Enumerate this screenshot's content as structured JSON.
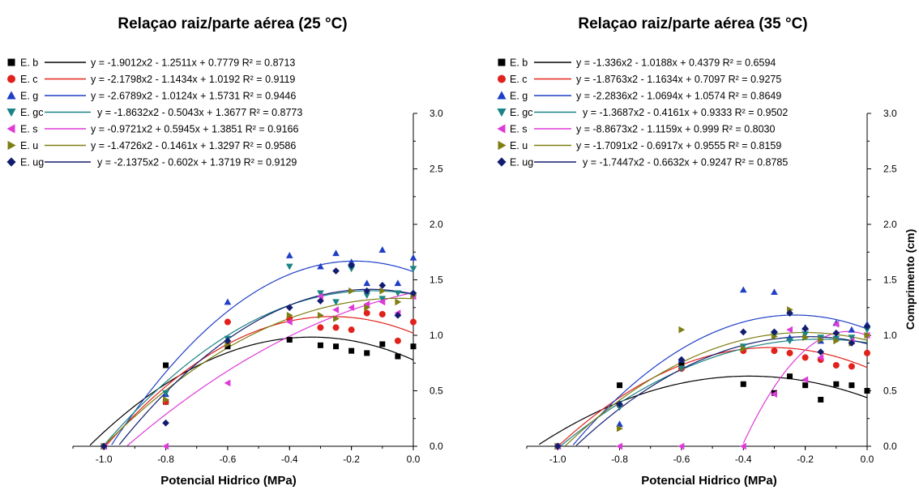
{
  "colors": {
    "E. b": "#000000",
    "E. c": "#e1221c",
    "E. g": "#1f3fc7",
    "E. gc": "#1b8383",
    "E. s": "#df3ad8",
    "E. u": "#7e7e12",
    "E. ug": "#121d6f"
  },
  "markers": {
    "E. b": "square",
    "E. c": "circle",
    "E. g": "triangle-up",
    "E. gc": "triangle-down",
    "E. s": "triangle-left",
    "E. u": "triangle-right",
    "E. ug": "diamond"
  },
  "chart_data": [
    {
      "type": "scatter",
      "title": "Relaçao raiz/parte aérea (25 °C)",
      "xlabel": "Potencial Hidrico (MPa)",
      "ylabel": "",
      "xlim": [
        -1.1,
        0.0
      ],
      "ylim": [
        0.0,
        3.0
      ],
      "xticks": [
        "-1.0",
        "-0.8",
        "-0.6",
        "-0.4",
        "-0.2",
        "0.0"
      ],
      "xtick_values": [
        -1.0,
        -0.8,
        -0.6,
        -0.4,
        -0.2,
        0.0
      ],
      "yticks": [
        "0.0",
        "0.5",
        "1.0",
        "1.5",
        "2.0",
        "2.5",
        "3.0"
      ],
      "ytick_values": [
        0.0,
        0.5,
        1.0,
        1.5,
        2.0,
        2.5,
        3.0
      ],
      "legend_position": "top-left",
      "grid": false,
      "series": [
        {
          "name": "E. b",
          "equation": "y = -1.9012x2 - 1.2511x + 0.7779 R² = 0.8713",
          "coef": [
            -1.9012,
            -1.2511,
            0.7779
          ],
          "x": [
            -1.0,
            -0.8,
            -0.8,
            -0.6,
            -0.4,
            -0.3,
            -0.25,
            -0.2,
            -0.15,
            -0.1,
            -0.05,
            0.0
          ],
          "y": [
            0.0,
            0.73,
            0.4,
            0.9,
            0.96,
            0.91,
            0.9,
            0.86,
            0.84,
            0.92,
            0.81,
            0.9
          ]
        },
        {
          "name": "E. c",
          "equation": "y = -2.1798x2 - 1.1434x + 1.0192 R² = 0.9119",
          "coef": [
            -2.1798,
            -1.1434,
            1.0192
          ],
          "x": [
            -1.0,
            -0.8,
            -0.6,
            -0.4,
            -0.3,
            -0.25,
            -0.2,
            -0.15,
            -0.1,
            -0.05,
            0.0
          ],
          "y": [
            0.0,
            0.4,
            1.12,
            1.15,
            1.07,
            1.07,
            1.05,
            1.2,
            1.19,
            0.95,
            1.12
          ]
        },
        {
          "name": "E. g",
          "equation": "y = -2.6789x2 - 1.0124x + 1.5731 R² = 0.9446",
          "coef": [
            -2.6789,
            -1.0124,
            1.5731
          ],
          "x": [
            -1.0,
            -0.8,
            -0.6,
            -0.4,
            -0.3,
            -0.25,
            -0.2,
            -0.15,
            -0.1,
            -0.05,
            0.0
          ],
          "y": [
            0.0,
            0.47,
            1.3,
            1.72,
            1.62,
            1.74,
            1.66,
            1.47,
            1.77,
            1.47,
            1.7
          ]
        },
        {
          "name": "E. gc",
          "equation": "y = -1.8632x2 - 0.5043x + 1.3677 R² = 0.8773",
          "coef": [
            -1.8632,
            -0.5043,
            1.3677
          ],
          "x": [
            -1.0,
            -0.8,
            -0.6,
            -0.4,
            -0.3,
            -0.25,
            -0.2,
            -0.15,
            -0.1,
            -0.05,
            0.0
          ],
          "y": [
            0.0,
            0.48,
            0.97,
            1.62,
            1.38,
            1.3,
            1.6,
            1.36,
            1.33,
            1.38,
            1.6
          ]
        },
        {
          "name": "E. s",
          "equation": "y = -0.9721x2 + 0.5945x + 1.3851 R² = 0.9166",
          "coef": [
            -0.9721,
            0.5945,
            1.3851
          ],
          "x": [
            -1.0,
            -0.8,
            -0.6,
            -0.4,
            -0.3,
            -0.25,
            -0.2,
            -0.15,
            -0.1,
            -0.05,
            0.0
          ],
          "y": [
            0.0,
            0.0,
            0.57,
            1.12,
            1.35,
            1.23,
            1.25,
            1.28,
            1.3,
            1.2,
            1.35
          ]
        },
        {
          "name": "E. u",
          "equation": "y = -1.4726x2 - 0.1461x + 1.3297 R² = 0.9586",
          "coef": [
            -1.4726,
            -0.1461,
            1.3297
          ],
          "x": [
            -1.0,
            -0.8,
            -0.6,
            -0.4,
            -0.3,
            -0.25,
            -0.2,
            -0.15,
            -0.1,
            -0.05,
            0.0
          ],
          "y": [
            0.0,
            0.42,
            0.92,
            1.18,
            1.18,
            1.15,
            1.4,
            1.25,
            1.4,
            1.3,
            1.36
          ]
        },
        {
          "name": "E. ug",
          "equation": "y = -2.1375x2 - 0.602x + 1.3719 R² = 0.9129",
          "coef": [
            -2.1375,
            -0.602,
            1.3719
          ],
          "x": [
            -1.0,
            -0.8,
            -0.6,
            -0.4,
            -0.3,
            -0.25,
            -0.2,
            -0.15,
            -0.1,
            -0.05,
            0.0
          ],
          "y": [
            0.0,
            0.21,
            0.95,
            1.25,
            1.31,
            1.58,
            1.63,
            1.4,
            1.45,
            1.18,
            1.38
          ]
        }
      ]
    },
    {
      "type": "scatter",
      "title": "Relaçao raiz/parte aérea (35 °C)",
      "xlabel": "Potencial Hidrico (MPa)",
      "ylabel": "Comprimento (cm)",
      "xlim": [
        -1.1,
        0.0
      ],
      "ylim": [
        0.0,
        3.0
      ],
      "xticks": [
        "-1.0",
        "-0.8",
        "-0.6",
        "-0.4",
        "-0.2",
        "0.0"
      ],
      "xtick_values": [
        -1.0,
        -0.8,
        -0.6,
        -0.4,
        -0.2,
        0.0
      ],
      "yticks": [
        "0.0",
        "0.5",
        "1.0",
        "1.5",
        "2.0",
        "2.5",
        "3.0"
      ],
      "ytick_values": [
        0.0,
        0.5,
        1.0,
        1.5,
        2.0,
        2.5,
        3.0
      ],
      "legend_position": "top-left",
      "grid": false,
      "series": [
        {
          "name": "E. b",
          "equation": "y = -1.336x2 - 1.0188x + 0.4379 R² = 0.6594",
          "coef": [
            -1.336,
            -1.0188,
            0.4379
          ],
          "x": [
            -1.0,
            -0.8,
            -0.6,
            -0.4,
            -0.3,
            -0.25,
            -0.2,
            -0.15,
            -0.1,
            -0.05,
            0.0
          ],
          "y": [
            0.0,
            0.55,
            0.75,
            0.56,
            0.48,
            0.63,
            0.55,
            0.42,
            0.56,
            0.55,
            0.5
          ]
        },
        {
          "name": "E. c",
          "equation": "y = -1.8763x2 - 1.1634x + 0.7097 R² = 0.9275",
          "coef": [
            -1.8763,
            -1.1634,
            0.7097
          ],
          "x": [
            -1.0,
            -0.8,
            -0.6,
            -0.4,
            -0.3,
            -0.25,
            -0.2,
            -0.15,
            -0.1,
            -0.05,
            0.0
          ],
          "y": [
            0.0,
            0.37,
            0.7,
            0.86,
            0.86,
            0.84,
            0.8,
            0.78,
            0.73,
            0.72,
            0.84
          ]
        },
        {
          "name": "E. g",
          "equation": "y = -2.2836x2 - 1.0694x + 1.0574 R² = 0.8649",
          "coef": [
            -2.2836,
            -1.0694,
            1.0574
          ],
          "x": [
            -1.0,
            -0.8,
            -0.6,
            -0.4,
            -0.3,
            -0.25,
            -0.2,
            -0.15,
            -0.1,
            -0.05,
            0.0
          ],
          "y": [
            0.0,
            0.2,
            0.78,
            1.41,
            1.39,
            0.98,
            1.07,
            0.95,
            1.11,
            1.05,
            1.1
          ]
        },
        {
          "name": "E. gc",
          "equation": "y = -1.3687x2 - 0.4161x + 0.9333 R² = 0.9502",
          "coef": [
            -1.3687,
            -0.4161,
            0.9333
          ],
          "x": [
            -1.0,
            -0.8,
            -0.6,
            -0.4,
            -0.3,
            -0.25,
            -0.2,
            -0.15,
            -0.1,
            -0.05,
            0.0
          ],
          "y": [
            0.0,
            0.35,
            0.7,
            0.9,
            1.0,
            0.95,
            1.01,
            0.98,
            0.97,
            0.98,
            1.05
          ]
        },
        {
          "name": "E. s",
          "equation": "y = -8.8673x2 - 1.1159x + 0.999 R² = 0.8030",
          "coef": [
            -8.8673,
            -1.1159,
            0.999
          ],
          "x": [
            -1.0,
            -0.8,
            -0.6,
            -0.4,
            -0.3,
            -0.25,
            -0.2,
            -0.15,
            -0.1,
            -0.05,
            0.0
          ],
          "y": [
            0.0,
            0.0,
            0.0,
            0.0,
            0.47,
            1.05,
            0.6,
            0.8,
            1.1,
            0.95,
            1.0
          ]
        },
        {
          "name": "E. u",
          "equation": "y = -1.7091x2 - 0.6917x + 0.9555 R² = 0.8159",
          "coef": [
            -1.7091,
            -0.6917,
            0.9555
          ],
          "x": [
            -1.0,
            -0.8,
            -0.6,
            -0.4,
            -0.3,
            -0.25,
            -0.2,
            -0.15,
            -0.1,
            -0.05,
            0.0
          ],
          "y": [
            0.0,
            0.16,
            1.05,
            0.88,
            0.99,
            1.23,
            0.98,
            0.96,
            0.95,
            0.93,
            1.0
          ]
        },
        {
          "name": "E. ug",
          "equation": "y = -1.7447x2 - 0.6632x + 0.9247 R² = 0.8785",
          "coef": [
            -1.7447,
            -0.6632,
            0.9247
          ],
          "x": [
            -1.0,
            -0.8,
            -0.6,
            -0.4,
            -0.3,
            -0.25,
            -0.2,
            -0.15,
            -0.1,
            -0.05,
            0.0
          ],
          "y": [
            0.0,
            0.38,
            0.78,
            1.03,
            1.03,
            1.2,
            1.06,
            0.85,
            1.02,
            0.93,
            1.08
          ]
        }
      ]
    }
  ]
}
